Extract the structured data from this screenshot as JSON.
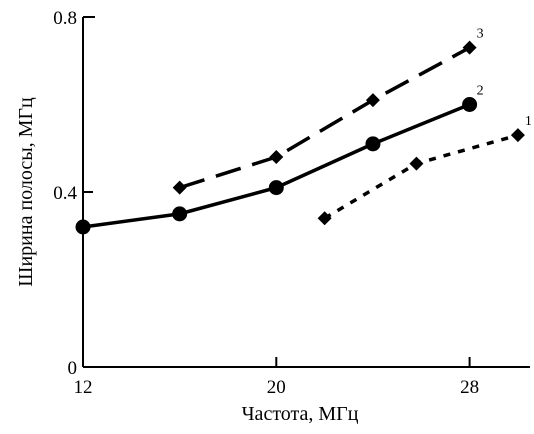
{
  "chart_data": {
    "type": "line",
    "title": "",
    "xlabel": "Частота, МГц",
    "ylabel": "Ширина полосы, МГц",
    "xlim": [
      12,
      30.5
    ],
    "ylim": [
      0,
      0.8
    ],
    "xticks": [
      12,
      20,
      28
    ],
    "xtick_labels": [
      "12",
      "20",
      "28"
    ],
    "yticks": [
      0,
      0.4,
      0.8
    ],
    "ytick_labels": [
      "0",
      "0.4",
      "0.8"
    ],
    "grid": false,
    "legend": "none",
    "series": [
      {
        "name": "1",
        "marker": "diamond",
        "line_style": "dotted",
        "x": [
          22,
          25.8,
          30
        ],
        "y": [
          0.34,
          0.465,
          0.53
        ]
      },
      {
        "name": "2",
        "marker": "circle",
        "line_style": "solid",
        "x": [
          12,
          16,
          20,
          24,
          28
        ],
        "y": [
          0.32,
          0.35,
          0.41,
          0.51,
          0.6
        ]
      },
      {
        "name": "3",
        "marker": "diamond",
        "line_style": "dashed",
        "x": [
          16,
          20,
          24,
          28
        ],
        "y": [
          0.41,
          0.48,
          0.61,
          0.73
        ]
      }
    ]
  }
}
